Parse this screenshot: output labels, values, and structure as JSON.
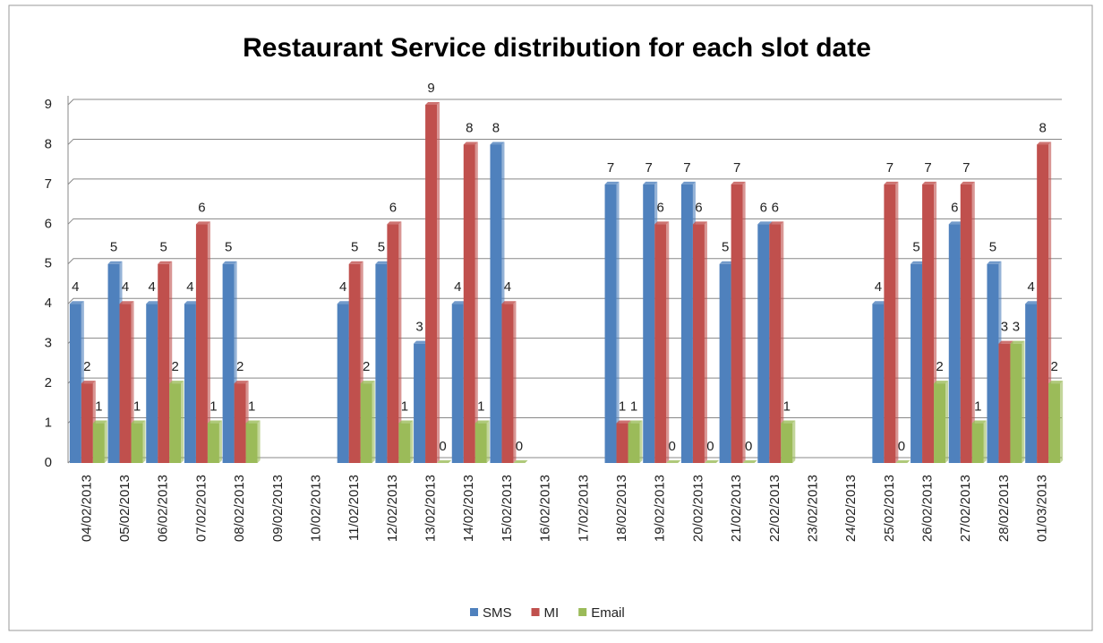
{
  "chart_data": {
    "type": "bar",
    "title": "Restaurant Service distribution  for each slot date",
    "categories": [
      "04/02/2013",
      "05/02/2013",
      "06/02/2013",
      "07/02/2013",
      "08/02/2013",
      "09/02/2013",
      "10/02/2013",
      "11/02/2013",
      "12/02/2013",
      "13/02/2013",
      "14/02/2013",
      "15/02/2013",
      "16/02/2013",
      "17/02/2013",
      "18/02/2013",
      "19/02/2013",
      "20/02/2013",
      "21/02/2013",
      "22/02/2013",
      "23/02/2013",
      "24/02/2013",
      "25/02/2013",
      "26/02/2013",
      "27/02/2013",
      "28/02/2013",
      "01/03/2013"
    ],
    "series": [
      {
        "name": "SMS",
        "color": "#4f81bd",
        "values": [
          4,
          5,
          4,
          4,
          5,
          null,
          null,
          4,
          5,
          3,
          4,
          8,
          null,
          null,
          7,
          7,
          7,
          5,
          6,
          null,
          null,
          4,
          5,
          6,
          5,
          4
        ]
      },
      {
        "name": "MI",
        "color": "#c0504d",
        "values": [
          2,
          4,
          5,
          6,
          2,
          null,
          null,
          5,
          6,
          9,
          8,
          4,
          null,
          null,
          1,
          6,
          6,
          7,
          6,
          null,
          null,
          7,
          7,
          7,
          3,
          8
        ]
      },
      {
        "name": "Email",
        "color": "#9bbb59",
        "values": [
          1,
          1,
          2,
          1,
          1,
          null,
          null,
          2,
          1,
          0,
          1,
          0,
          null,
          null,
          1,
          0,
          0,
          0,
          1,
          null,
          null,
          0,
          2,
          1,
          3,
          2
        ]
      }
    ],
    "ylim": [
      0,
      9
    ],
    "yticks": [
      0,
      1,
      2,
      3,
      4,
      5,
      6,
      7,
      8,
      9
    ],
    "grid": true,
    "legend": "bottom"
  }
}
